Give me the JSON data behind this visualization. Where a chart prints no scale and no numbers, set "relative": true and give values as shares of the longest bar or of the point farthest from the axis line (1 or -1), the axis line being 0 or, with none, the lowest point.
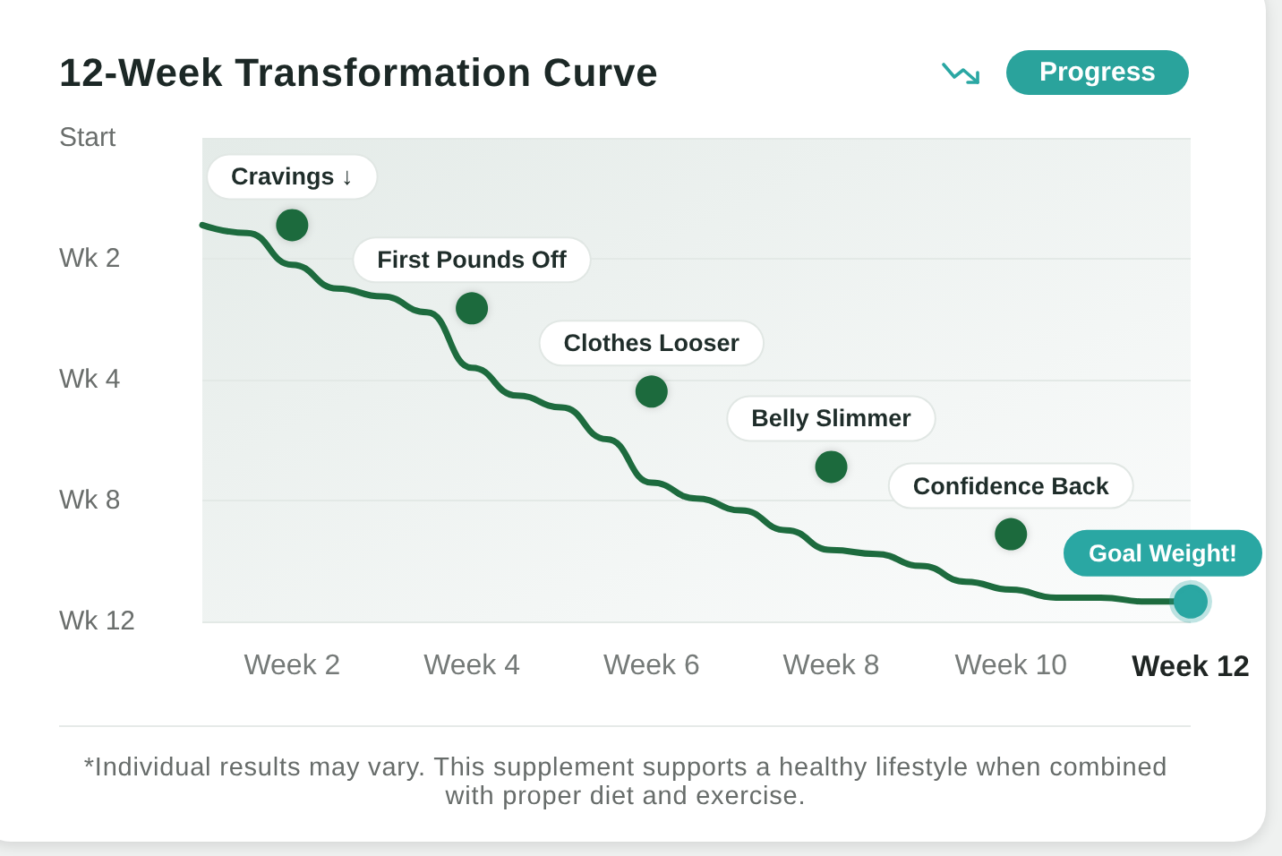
{
  "chart_data": {
    "type": "line",
    "title": "12-Week Transformation Curve",
    "subtitle": "Progress",
    "relative": true,
    "categories": [
      null,
      null,
      "Week 2",
      null,
      null,
      null,
      "Week 4",
      null,
      null,
      null,
      "Week 6",
      null,
      null,
      null,
      "Week 8",
      null,
      null,
      null,
      "Week 10",
      null,
      null,
      null,
      "Week 12"
    ],
    "y_categories": [
      "Start",
      "Wk 2",
      "Wk 4",
      "Wk 8",
      "Wk 12"
    ],
    "grid": "y",
    "series": [
      {
        "color": "#1d6b3e",
        "values": [
          1,
          0.98,
          0.9,
          0.84,
          0.82,
          0.78,
          0.64,
          0.57,
          0.54,
          0.46,
          0.35,
          0.31,
          0.28,
          0.23,
          0.18,
          0.17,
          0.14,
          0.1,
          0.08,
          0.06,
          0.06,
          0.05,
          0.05
        ]
      },
      {
        "type": "scatter",
        "color": "#1d6b3e",
        "marker": "circle",
        "values": [
          null,
          null,
          1,
          null,
          null,
          null,
          0.79,
          null,
          null,
          null,
          0.58,
          null,
          null,
          null,
          0.39,
          null,
          null,
          null,
          0.22,
          null,
          null,
          null,
          null
        ]
      },
      {
        "type": "scatter",
        "color": "#2aa7a3",
        "marker": "circle",
        "values": [
          null,
          null,
          null,
          null,
          null,
          null,
          null,
          null,
          null,
          null,
          null,
          null,
          null,
          null,
          null,
          null,
          null,
          null,
          null,
          null,
          null,
          null,
          0.05
        ]
      }
    ],
    "annotations": [
      {
        "text": "Cravings ↓",
        "x": "Week 2",
        "y": 1
      },
      {
        "text": "First Pounds Off",
        "x": "Week 4",
        "y": 0.79
      },
      {
        "text": "Clothes Looser",
        "x": "Week 6",
        "y": 0.58
      },
      {
        "text": "Belly Slimmer",
        "x": "Week 8",
        "y": 0.39
      },
      {
        "text": "Confidence Back",
        "x": "Week 10",
        "y": 0.22
      },
      {
        "text": "Goal Weight!",
        "x": "Week 12",
        "y": 0.05
      },
      "*Individual results may vary. This supplement supports a healthy lifestyle when combined with proper diet and exercise."
    ]
  }
}
